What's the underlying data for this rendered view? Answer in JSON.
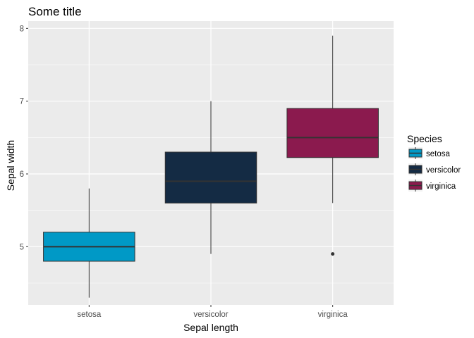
{
  "chart_data": {
    "type": "box",
    "title": "Some title",
    "xlabel": "Sepal length",
    "ylabel": "Sepal width",
    "categories": [
      "setosa",
      "versicolor",
      "virginica"
    ],
    "ylim": [
      4.2,
      8.1
    ],
    "y_ticks": [
      "5",
      "6",
      "7",
      "8"
    ],
    "grid": true,
    "legend": {
      "title": "Species",
      "position": "right",
      "items": [
        "setosa",
        "versicolor",
        "virginica"
      ]
    },
    "series": [
      {
        "category": "setosa",
        "color": "#0099C6",
        "whisker_low": 4.3,
        "q1": 4.8,
        "median": 5.0,
        "q3": 5.2,
        "whisker_high": 5.8,
        "outliers": []
      },
      {
        "category": "versicolor",
        "color": "#142B44",
        "whisker_low": 4.9,
        "q1": 5.6,
        "median": 5.9,
        "q3": 6.3,
        "whisker_high": 7.0,
        "outliers": []
      },
      {
        "category": "virginica",
        "color": "#8B1A4E",
        "whisker_low": 5.6,
        "q1": 6.225,
        "median": 6.5,
        "q3": 6.9,
        "whisker_high": 7.9,
        "outliers": [
          4.9
        ]
      }
    ]
  }
}
